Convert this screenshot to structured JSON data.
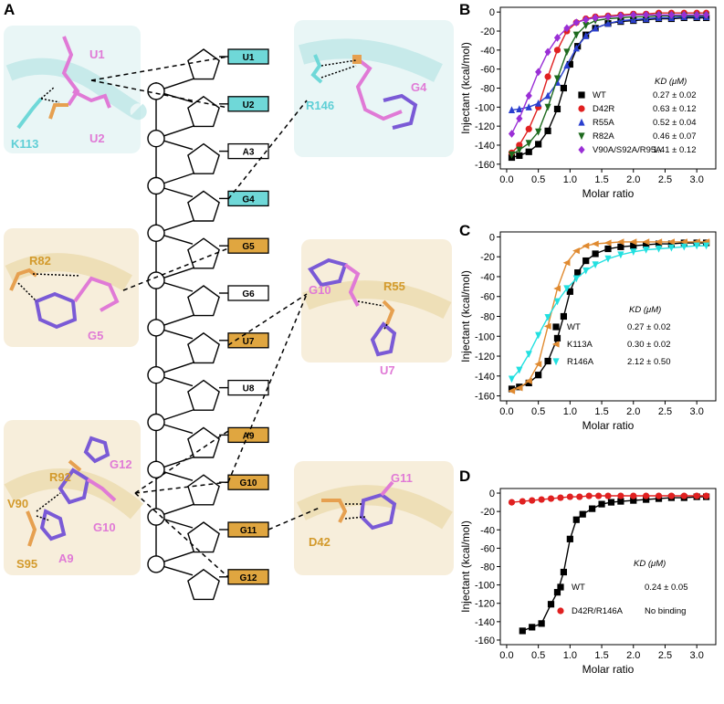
{
  "panels": {
    "a": "A",
    "b": "B",
    "c": "C",
    "d": "D"
  },
  "colors": {
    "cyan": "#6fd8d8",
    "orange": "#e0a640",
    "pink": "#e27ad8",
    "cyanText": "#5fcfd6",
    "orangeText": "#d39a2c",
    "pinkText": "#e07ad6"
  },
  "panelA": {
    "nucleotides": [
      {
        "label": "U1",
        "fill": "#6fd8d8"
      },
      {
        "label": "U2",
        "fill": "#6fd8d8"
      },
      {
        "label": "A3",
        "fill": "#ffffff"
      },
      {
        "label": "G4",
        "fill": "#6fd8d8"
      },
      {
        "label": "G5",
        "fill": "#e0a640"
      },
      {
        "label": "G6",
        "fill": "#ffffff"
      },
      {
        "label": "U7",
        "fill": "#e0a640"
      },
      {
        "label": "U8",
        "fill": "#ffffff"
      },
      {
        "label": "A9",
        "fill": "#e0a640"
      },
      {
        "label": "G10",
        "fill": "#e0a640"
      },
      {
        "label": "G11",
        "fill": "#e0a640"
      },
      {
        "label": "G12",
        "fill": "#e0a640"
      }
    ],
    "inset1": {
      "u1": "U1",
      "u2": "U2",
      "k113": "K113"
    },
    "inset2": {
      "r146": "R146",
      "g4": "G4"
    },
    "inset3": {
      "r82": "R82",
      "g5": "G5"
    },
    "inset4": {
      "g10": "G10",
      "r55": "R55",
      "u7": "U7"
    },
    "inset5": {
      "r92": "R92",
      "g12": "G12",
      "v90": "V90",
      "g10": "G10",
      "s95": "S95",
      "a9": "A9"
    },
    "inset6": {
      "g11": "G11",
      "d42": "D42"
    }
  },
  "chart_data": [
    {
      "panel": "B",
      "type": "line",
      "xlabel": "Molar ratio",
      "ylabel": "Injectant (kcal/mol)",
      "xlim": [
        -0.1,
        3.3
      ],
      "ylim": [
        -165,
        5
      ],
      "xticks": [
        "0.0",
        "0.5",
        "1.0",
        "1.5",
        "2.0",
        "2.5",
        "3.0"
      ],
      "yticks": [
        "0",
        "-20",
        "-40",
        "-60",
        "-80",
        "-100",
        "-120",
        "-140",
        "-160"
      ],
      "legend_title": "KD (μM)",
      "legend_position": "center-right",
      "series": [
        {
          "name": "WT",
          "kd": "0.27 ± 0.02",
          "color": "#000000",
          "marker": "square",
          "x": [
            0.08,
            0.2,
            0.35,
            0.5,
            0.65,
            0.8,
            0.9,
            1.0,
            1.12,
            1.25,
            1.4,
            1.6,
            1.8,
            2.0,
            2.2,
            2.4,
            2.6,
            2.8,
            3.0,
            3.15
          ],
          "y": [
            -153,
            -151,
            -147,
            -139,
            -125,
            -102,
            -80,
            -55,
            -36,
            -24,
            -17,
            -12,
            -10,
            -9,
            -8,
            -7,
            -7,
            -6,
            -6,
            -6
          ]
        },
        {
          "name": "D42R",
          "kd": "0.63 ± 0.12",
          "color": "#e02020",
          "marker": "circle",
          "x": [
            0.08,
            0.2,
            0.35,
            0.5,
            0.65,
            0.8,
            0.95,
            1.1,
            1.25,
            1.4,
            1.6,
            1.8,
            2.0,
            2.2,
            2.4,
            2.6,
            2.8,
            3.0,
            3.15
          ],
          "y": [
            -148,
            -140,
            -123,
            -100,
            -68,
            -40,
            -20,
            -11,
            -7,
            -5,
            -4,
            -3,
            -2,
            -2,
            -1,
            -1,
            -1,
            -1,
            -1
          ]
        },
        {
          "name": "R55A",
          "kd": "0.52 ± 0.04",
          "color": "#2a3fcf",
          "marker": "triangle-up",
          "x": [
            0.08,
            0.2,
            0.35,
            0.5,
            0.65,
            0.8,
            0.95,
            1.1,
            1.25,
            1.4,
            1.6,
            1.8,
            2.0,
            2.2,
            2.4,
            2.6,
            2.8,
            3.0,
            3.15
          ],
          "y": [
            -103,
            -102,
            -100,
            -96,
            -88,
            -74,
            -56,
            -38,
            -25,
            -17,
            -12,
            -9,
            -8,
            -7,
            -6,
            -6,
            -5,
            -5,
            -5
          ]
        },
        {
          "name": "R82A",
          "kd": "0.46 ± 0.07",
          "color": "#1e6a1e",
          "marker": "triangle-down",
          "x": [
            0.08,
            0.2,
            0.35,
            0.5,
            0.65,
            0.8,
            0.95,
            1.1,
            1.25,
            1.4,
            1.6,
            1.8,
            2.0,
            2.2,
            2.4,
            2.6,
            2.8,
            3.0,
            3.15
          ],
          "y": [
            -150,
            -145,
            -138,
            -126,
            -100,
            -70,
            -42,
            -24,
            -14,
            -9,
            -7,
            -6,
            -5,
            -5,
            -4,
            -4,
            -4,
            -4,
            -4
          ]
        },
        {
          "name": "V90A/S92A/R95A",
          "kd": "1.41 ± 0.12",
          "color": "#9a2fd6",
          "marker": "diamond",
          "x": [
            0.08,
            0.2,
            0.35,
            0.5,
            0.65,
            0.8,
            0.95,
            1.1,
            1.25,
            1.4,
            1.6,
            1.8,
            2.0,
            2.2,
            2.4,
            2.6,
            2.8,
            3.0,
            3.15
          ],
          "y": [
            -128,
            -112,
            -88,
            -63,
            -42,
            -27,
            -17,
            -11,
            -8,
            -6,
            -5,
            -4,
            -3,
            -3,
            -3,
            -3,
            -3,
            -3,
            -3
          ]
        }
      ]
    },
    {
      "panel": "C",
      "type": "line",
      "xlabel": "Molar ratio",
      "ylabel": "Injectant (kcal/mol)",
      "xlim": [
        -0.1,
        3.3
      ],
      "ylim": [
        -165,
        5
      ],
      "xticks": [
        "0.0",
        "0.5",
        "1.0",
        "1.5",
        "2.0",
        "2.5",
        "3.0"
      ],
      "yticks": [
        "0",
        "-20",
        "-40",
        "-60",
        "-80",
        "-100",
        "-120",
        "-140",
        "-160"
      ],
      "legend_title": "KD (μM)",
      "legend_position": "bottom-center",
      "series": [
        {
          "name": "WT",
          "kd": "0.27 ± 0.02",
          "color": "#000000",
          "marker": "square",
          "x": [
            0.08,
            0.2,
            0.35,
            0.5,
            0.65,
            0.8,
            0.9,
            1.0,
            1.12,
            1.25,
            1.4,
            1.6,
            1.8,
            2.0,
            2.2,
            2.4,
            2.6,
            2.8,
            3.0,
            3.15
          ],
          "y": [
            -153,
            -151,
            -147,
            -139,
            -125,
            -102,
            -80,
            -55,
            -36,
            -24,
            -17,
            -12,
            -10,
            -9,
            -8,
            -7,
            -7,
            -6,
            -6,
            -6
          ]
        },
        {
          "name": "K113A",
          "kd": "0.30 ± 0.02",
          "color": "#e08a30",
          "marker": "triangle-left",
          "x": [
            0.08,
            0.2,
            0.35,
            0.5,
            0.65,
            0.8,
            0.95,
            1.1,
            1.25,
            1.4,
            1.6,
            1.8,
            2.0,
            2.2,
            2.4,
            2.6,
            2.8,
            3.0,
            3.15
          ],
          "y": [
            -155,
            -152,
            -145,
            -128,
            -90,
            -52,
            -26,
            -14,
            -9,
            -7,
            -6,
            -5,
            -5,
            -5,
            -5,
            -5,
            -5,
            -5,
            -5
          ]
        },
        {
          "name": "R146A",
          "kd": "2.12 ± 0.50",
          "color": "#22e0e0",
          "marker": "triangle-down",
          "x": [
            0.08,
            0.2,
            0.35,
            0.5,
            0.65,
            0.8,
            0.95,
            1.1,
            1.25,
            1.4,
            1.6,
            1.8,
            2.0,
            2.2,
            2.4,
            2.6,
            2.8,
            3.0,
            3.15
          ],
          "y": [
            -143,
            -134,
            -118,
            -99,
            -81,
            -65,
            -52,
            -42,
            -34,
            -28,
            -22,
            -18,
            -15,
            -13,
            -12,
            -11,
            -10,
            -9,
            -9
          ]
        }
      ]
    },
    {
      "panel": "D",
      "type": "line",
      "xlabel": "Molar ratio",
      "ylabel": "Injectant (kcal/mol)",
      "xlim": [
        -0.1,
        3.3
      ],
      "ylim": [
        -165,
        5
      ],
      "xticks": [
        "0.0",
        "0.5",
        "1.0",
        "1.5",
        "2.0",
        "2.5",
        "3.0"
      ],
      "yticks": [
        "0",
        "-20",
        "-40",
        "-60",
        "-80",
        "-100",
        "-120",
        "-140",
        "-160"
      ],
      "legend_title": "KD (μM)",
      "legend_position": "bottom-center",
      "series": [
        {
          "name": "WT",
          "kd": "0.24 ± 0.05",
          "color": "#000000",
          "marker": "square",
          "x": [
            0.25,
            0.4,
            0.55,
            0.7,
            0.8,
            0.9,
            1.0,
            1.1,
            1.2,
            1.35,
            1.5,
            1.65,
            1.8,
            2.0,
            2.2,
            2.4,
            2.6,
            2.8,
            3.0,
            3.15
          ],
          "y": [
            -150,
            -146,
            -142,
            -121,
            -108,
            -86,
            -50,
            -29,
            -23,
            -17,
            -12,
            -10,
            -9,
            -8,
            -7,
            -6,
            -5,
            -5,
            -4,
            -4
          ]
        },
        {
          "name": "D42R/R146A",
          "kd": "No binding",
          "color": "#e02020",
          "marker": "circle",
          "x": [
            0.08,
            0.25,
            0.4,
            0.55,
            0.7,
            0.85,
            1.0,
            1.15,
            1.3,
            1.45,
            1.6,
            1.8,
            2.0,
            2.2,
            2.4,
            2.6,
            2.8,
            3.0,
            3.15
          ],
          "y": [
            -10,
            -9,
            -8,
            -7,
            -6,
            -5,
            -4,
            -4,
            -3,
            -3,
            -3,
            -3,
            -3,
            -3,
            -3,
            -3,
            -3,
            -3,
            -3
          ]
        }
      ]
    }
  ]
}
